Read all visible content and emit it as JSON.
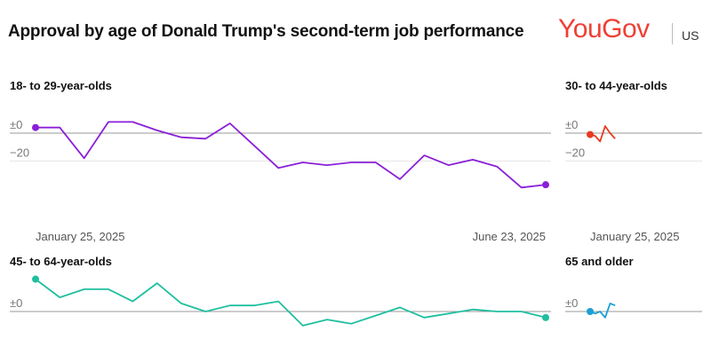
{
  "title": "Approval by age of Donald Trump's second-term job performance",
  "brand": {
    "name": "YouGov",
    "region": "US",
    "color": "#ee4035"
  },
  "chart_data": [
    {
      "type": "line",
      "title": "18- to 29-year-olds",
      "color": "#8a1fd8",
      "x_start": "January 25, 2025",
      "x_end": "June 23, 2025",
      "ylim": [
        -40,
        14
      ],
      "y_ticks": [
        {
          "value": 0,
          "label": "±0"
        },
        {
          "value": -20,
          "label": "−20"
        }
      ],
      "values": [
        4,
        4,
        -18,
        8,
        8,
        2,
        -3,
        -4,
        7,
        -9,
        -25,
        -21,
        -23,
        -21,
        -21,
        -33,
        -16,
        -23,
        -19,
        -24,
        -39,
        -37
      ]
    },
    {
      "type": "line",
      "title": "30- to 44-year-olds",
      "color": "#e83a20",
      "x_start": "January 25, 2025",
      "x_end": "",
      "ylim": [
        -40,
        14
      ],
      "y_ticks": [
        {
          "value": 0,
          "label": "±0"
        },
        {
          "value": -20,
          "label": "−20"
        }
      ],
      "values": [
        -1,
        -2,
        -6,
        5,
        0,
        -4
      ]
    },
    {
      "type": "line",
      "title": "45- to 64-year-olds",
      "color": "#1fbf9f",
      "x_start": "",
      "x_end": "",
      "ylim": [
        -10,
        18
      ],
      "y_ticks": [
        {
          "value": 0,
          "label": "±0"
        }
      ],
      "values": [
        16,
        7,
        11,
        11,
        5,
        14,
        4,
        0,
        3,
        3,
        5,
        -7,
        -4,
        -6,
        -2,
        2,
        -3,
        -1,
        1,
        0,
        0,
        -3
      ]
    },
    {
      "type": "line",
      "title": "65 and older",
      "color": "#1a9fd6",
      "x_start": "",
      "x_end": "",
      "ylim": [
        -10,
        18
      ],
      "y_ticks": [
        {
          "value": 0,
          "label": "±0"
        }
      ],
      "values": [
        0,
        -1,
        0,
        -3,
        4,
        3
      ]
    }
  ]
}
